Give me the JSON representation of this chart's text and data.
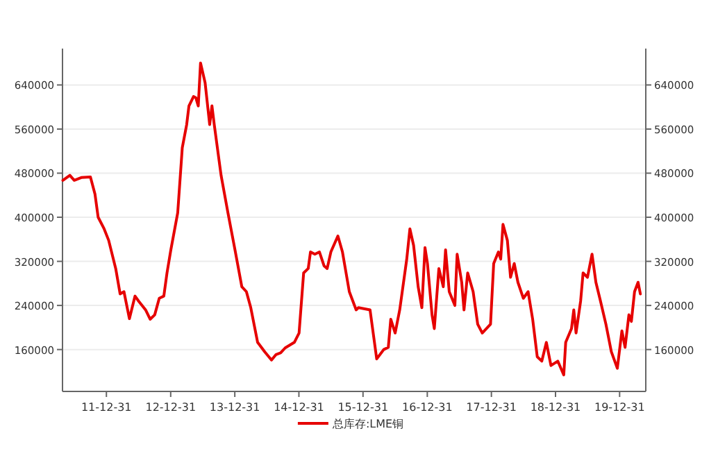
{
  "chart_data": {
    "type": "line",
    "x": [
      "2011-04-27",
      "2011-06-06",
      "2011-07-01",
      "2011-08-10",
      "2011-10-01",
      "2011-10-27",
      "2011-11-14",
      "2011-12-18",
      "2012-01-13",
      "2012-02-22",
      "2012-03-18",
      "2012-04-09",
      "2012-05-10",
      "2012-06-11",
      "2012-07-01",
      "2012-08-10",
      "2012-09-05",
      "2012-10-01",
      "2012-10-27",
      "2012-11-22",
      "2012-12-10",
      "2013-01-01",
      "2013-02-09",
      "2013-03-07",
      "2013-04-01",
      "2013-04-14",
      "2013-05-10",
      "2013-05-23",
      "2013-06-06",
      "2013-06-19",
      "2013-07-15",
      "2013-08-10",
      "2013-08-23",
      "2013-09-05",
      "2013-10-14",
      "2013-11-22",
      "2014-01-01",
      "2014-02-09",
      "2014-03-07",
      "2014-04-01",
      "2014-05-10",
      "2014-06-19",
      "2014-07-28",
      "2014-08-23",
      "2014-09-18",
      "2014-10-14",
      "2014-12-05",
      "2015-01-01",
      "2015-01-27",
      "2015-02-22",
      "2015-03-07",
      "2015-04-01",
      "2015-04-27",
      "2015-05-23",
      "2015-06-10",
      "2015-07-01",
      "2015-08-10",
      "2015-09-05",
      "2015-10-14",
      "2015-11-22",
      "2015-12-05",
      "2016-02-09",
      "2016-03-18",
      "2016-04-27",
      "2016-05-23",
      "2016-06-06",
      "2016-07-01",
      "2016-07-27",
      "2016-09-05",
      "2016-09-23",
      "2016-10-14",
      "2016-11-09",
      "2016-11-30",
      "2016-12-18",
      "2017-01-01",
      "2017-01-27",
      "2017-02-09",
      "2017-03-07",
      "2017-04-01",
      "2017-04-14",
      "2017-05-05",
      "2017-06-06",
      "2017-06-19",
      "2017-07-15",
      "2017-07-28",
      "2017-08-18",
      "2017-09-18",
      "2017-10-14",
      "2017-11-09",
      "2017-12-26",
      "2018-01-13",
      "2018-02-09",
      "2018-02-22",
      "2018-03-07",
      "2018-04-01",
      "2018-04-19",
      "2018-05-10",
      "2018-05-31",
      "2018-07-01",
      "2018-07-28",
      "2018-08-23",
      "2018-09-18",
      "2018-10-14",
      "2018-11-09",
      "2018-12-05",
      "2019-01-13",
      "2019-02-16",
      "2019-02-27",
      "2019-04-01",
      "2019-04-14",
      "2019-04-27",
      "2019-05-23",
      "2019-06-06",
      "2019-07-01",
      "2019-07-27",
      "2019-08-18",
      "2019-09-13",
      "2019-10-14",
      "2019-11-14",
      "2019-12-18",
      "2020-01-13",
      "2020-01-31",
      "2020-02-22",
      "2020-03-07",
      "2020-03-25",
      "2020-04-14",
      "2020-04-27"
    ],
    "series": [
      {
        "name": "总库存:LME铜",
        "color": "#e60000",
        "values": [
          467000,
          476000,
          467000,
          472000,
          473000,
          442000,
          400000,
          379000,
          358000,
          307000,
          261000,
          265000,
          216000,
          257000,
          248000,
          232000,
          215000,
          223000,
          253000,
          257000,
          299000,
          341000,
          408000,
          526000,
          568000,
          602000,
          619000,
          617000,
          602000,
          680000,
          644000,
          568000,
          602000,
          568000,
          476000,
          408000,
          341000,
          274000,
          265000,
          236000,
          173000,
          156000,
          141000,
          151000,
          154000,
          163000,
          173000,
          190000,
          299000,
          307000,
          337000,
          333000,
          337000,
          312000,
          307000,
          337000,
          366000,
          337000,
          265000,
          232000,
          236000,
          232000,
          143000,
          160000,
          164000,
          215000,
          190000,
          232000,
          324000,
          379000,
          349000,
          274000,
          236000,
          345000,
          316000,
          223000,
          198000,
          307000,
          274000,
          341000,
          265000,
          240000,
          333000,
          282000,
          232000,
          299000,
          265000,
          206000,
          190000,
          206000,
          316000,
          337000,
          324000,
          387000,
          358000,
          291000,
          316000,
          282000,
          253000,
          265000,
          215000,
          147000,
          139000,
          173000,
          131000,
          139000,
          114000,
          173000,
          198000,
          232000,
          190000,
          248000,
          299000,
          291000,
          333000,
          282000,
          248000,
          206000,
          156000,
          126000,
          194000,
          164000,
          223000,
          211000,
          265000,
          282000,
          261000
        ]
      }
    ],
    "xlim": [
      "2011-04-25",
      "2020-05-28"
    ],
    "xticks": [
      {
        "value": "2011-12-31",
        "label": "11-12-31"
      },
      {
        "value": "2012-12-31",
        "label": "12-12-31"
      },
      {
        "value": "2013-12-31",
        "label": "13-12-31"
      },
      {
        "value": "2014-12-31",
        "label": "14-12-31"
      },
      {
        "value": "2015-12-31",
        "label": "15-12-31"
      },
      {
        "value": "2016-12-31",
        "label": "16-12-31"
      },
      {
        "value": "2017-12-31",
        "label": "17-12-31"
      },
      {
        "value": "2018-12-31",
        "label": "18-12-31"
      },
      {
        "value": "2019-12-31",
        "label": "19-12-31"
      }
    ],
    "ylim": [
      84000,
      706000
    ],
    "yticks": [
      160000,
      240000,
      320000,
      400000,
      480000,
      560000,
      640000
    ],
    "y2lim": [
      84000,
      706000
    ],
    "y2ticks": [
      160000,
      240000,
      320000,
      400000,
      480000,
      560000,
      640000
    ],
    "grid": "y",
    "legend": "bottom",
    "marker": "none",
    "line_style": "solid"
  }
}
